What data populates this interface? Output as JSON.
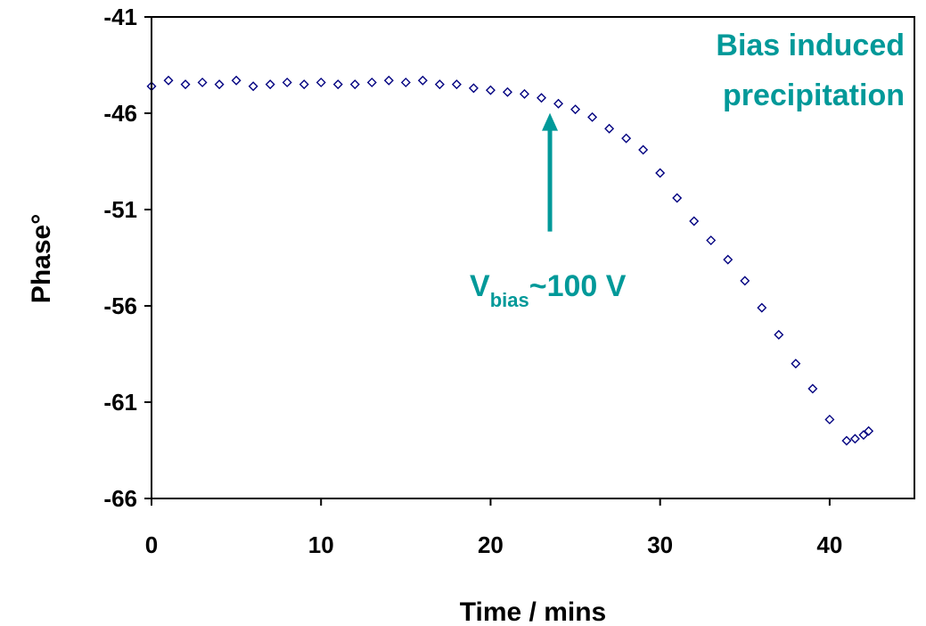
{
  "chart_data": {
    "type": "scatter",
    "xlabel": "Time / mins",
    "ylabel": "Phase°",
    "xlim": [
      0,
      45
    ],
    "ylim": [
      -66,
      -41
    ],
    "xticks": [
      0,
      10,
      20,
      30,
      40
    ],
    "yticks": [
      -66,
      -61,
      -56,
      -51,
      -46,
      -41
    ],
    "grid": false,
    "legend": "none",
    "marker": "diamond-open",
    "series_color": "#000080",
    "annotation_color": "#009999",
    "series": [
      {
        "x": [
          0,
          1,
          2,
          3,
          4,
          5,
          6,
          7,
          8,
          9,
          10,
          11,
          12,
          13,
          14,
          15,
          16,
          17,
          18,
          19,
          20,
          21,
          22,
          23,
          24,
          25,
          26,
          27,
          28,
          29,
          30,
          31,
          32,
          33,
          34,
          35,
          36,
          37,
          38,
          39,
          40,
          41,
          41.5,
          42,
          42.3
        ],
        "y": [
          -44.6,
          -44.3,
          -44.5,
          -44.4,
          -44.5,
          -44.3,
          -44.6,
          -44.5,
          -44.4,
          -44.5,
          -44.4,
          -44.5,
          -44.5,
          -44.4,
          -44.3,
          -44.4,
          -44.3,
          -44.5,
          -44.5,
          -44.7,
          -44.8,
          -44.9,
          -45.0,
          -45.2,
          -45.5,
          -45.8,
          -46.2,
          -46.8,
          -47.3,
          -47.9,
          -49.1,
          -50.4,
          -51.6,
          -52.6,
          -53.6,
          -54.7,
          -56.1,
          -57.5,
          -59.0,
          -60.3,
          -61.9,
          -63.0,
          -62.9,
          -62.7,
          -62.5
        ]
      }
    ],
    "annotations": [
      {
        "lines": [
          "Bias induced",
          "precipitation"
        ]
      },
      {
        "text_main": "V",
        "text_sub": "bias",
        "text_rest": "~100 V",
        "arrow_x": 23.5,
        "arrow_y": -45.8
      }
    ]
  }
}
